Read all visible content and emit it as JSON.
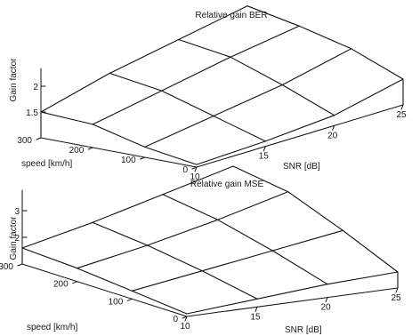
{
  "chart_data": [
    {
      "type": "surface",
      "title": "Relative gain BER",
      "xlabel": "SNR [dB]",
      "ylabel": "speed [km/h]",
      "zlabel": "Gain factor",
      "x": [
        10,
        15,
        20,
        25
      ],
      "y": [
        0,
        100,
        200,
        300
      ],
      "x_ticks": [
        "10",
        "15",
        "20",
        "25"
      ],
      "y_ticks": [
        "0",
        "100",
        "200",
        "300"
      ],
      "z_ticks": [
        "1.5",
        "2"
      ],
      "z": [
        [
          1.05,
          1.1,
          1.2,
          1.5
        ],
        [
          1.2,
          1.4,
          1.6,
          1.9
        ],
        [
          1.45,
          1.7,
          1.95,
          2.15
        ],
        [
          1.5,
          1.85,
          2.1,
          2.35
        ]
      ]
    },
    {
      "type": "surface",
      "title": "Relative gain MSE",
      "xlabel": "SNR [dB]",
      "ylabel": "speed [km/h]",
      "zlabel": "Gain factor",
      "x": [
        10,
        15,
        20,
        25
      ],
      "y": [
        0,
        100,
        200,
        300
      ],
      "x_ticks": [
        "10",
        "15",
        "20",
        "25"
      ],
      "y_ticks": [
        "0",
        "100",
        "200",
        "300"
      ],
      "z_ticks": [
        "2",
        "3"
      ],
      "z": [
        [
          1.1,
          1.3,
          1.5,
          1.6
        ],
        [
          1.3,
          1.7,
          2.1,
          2.5
        ],
        [
          1.5,
          2.0,
          2.6,
          3.3
        ],
        [
          1.6,
          2.2,
          2.9,
          3.6
        ]
      ]
    }
  ]
}
